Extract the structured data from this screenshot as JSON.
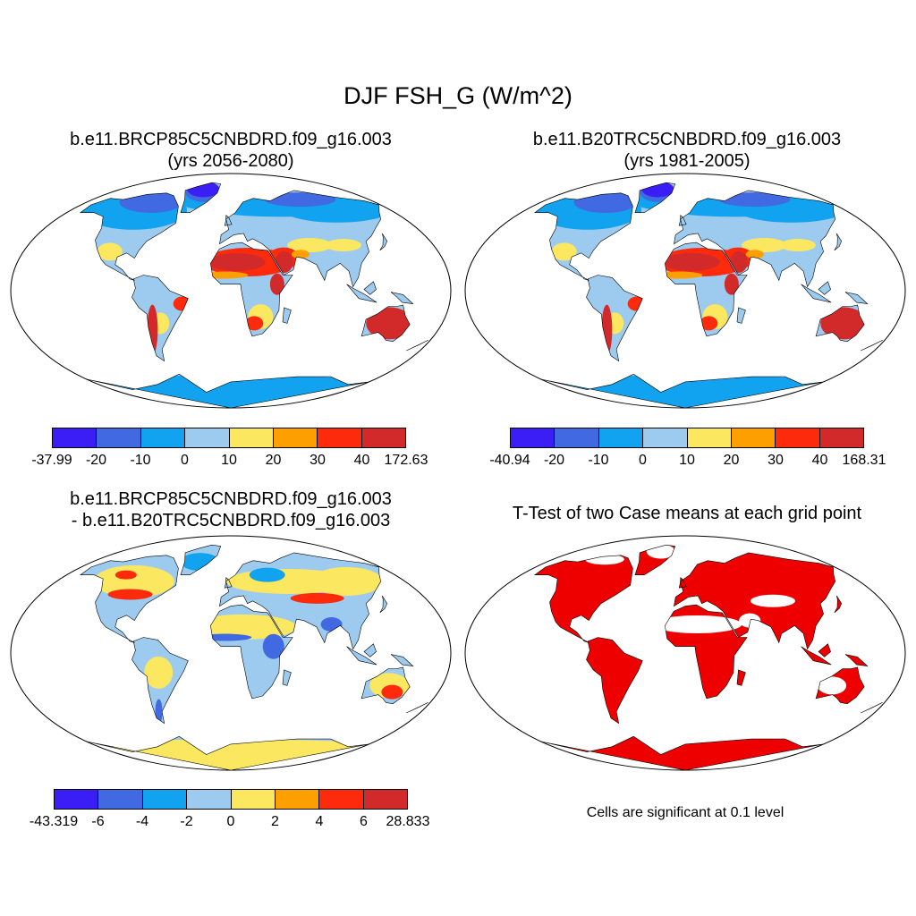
{
  "title": "DJF FSH_G (W/m^2)",
  "panels": [
    {
      "line1": "b.e11.BRCP85C5CNBDRD.f09_g16.003",
      "line2": "(yrs 2056-2080)"
    },
    {
      "line1": "b.e11.B20TRC5CNBDRD.f09_g16.003",
      "line2": "(yrs 1981-2005)"
    },
    {
      "line1": "b.e11.BRCP85C5CNBDRD.f09_g16.003",
      "line2": "- b.e11.B20TRC5CNBDRD.f09_g16.003"
    },
    {
      "line1": "T-Test of two Case means at each grid point",
      "line2": ""
    }
  ],
  "colorbars": [
    {
      "colors": [
        "#3a1ef5",
        "#4169e1",
        "#12a3f0",
        "#9dcbef",
        "#fce761",
        "#fe9f00",
        "#fd2b0c",
        "#d22a2a"
      ],
      "labels": [
        "-37.99",
        "-20",
        "-10",
        "0",
        "10",
        "20",
        "30",
        "40",
        "172.63"
      ]
    },
    {
      "colors": [
        "#3a1ef5",
        "#4169e1",
        "#12a3f0",
        "#9dcbef",
        "#fce761",
        "#fe9f00",
        "#fd2b0c",
        "#d22a2a"
      ],
      "labels": [
        "-40.94",
        "-20",
        "-10",
        "0",
        "10",
        "20",
        "30",
        "40",
        "168.31"
      ]
    },
    {
      "colors": [
        "#3a1ef5",
        "#4169e1",
        "#12a3f0",
        "#9dcbef",
        "#fce761",
        "#fe9f00",
        "#fd2b0c",
        "#d22a2a"
      ],
      "labels": [
        "-43.319",
        "-6",
        "-4",
        "-2",
        "0",
        "2",
        "4",
        "6",
        "28.833"
      ]
    }
  ],
  "significance_note": "Cells are significant at 0.1 level",
  "significance_color": "#ee0000"
}
